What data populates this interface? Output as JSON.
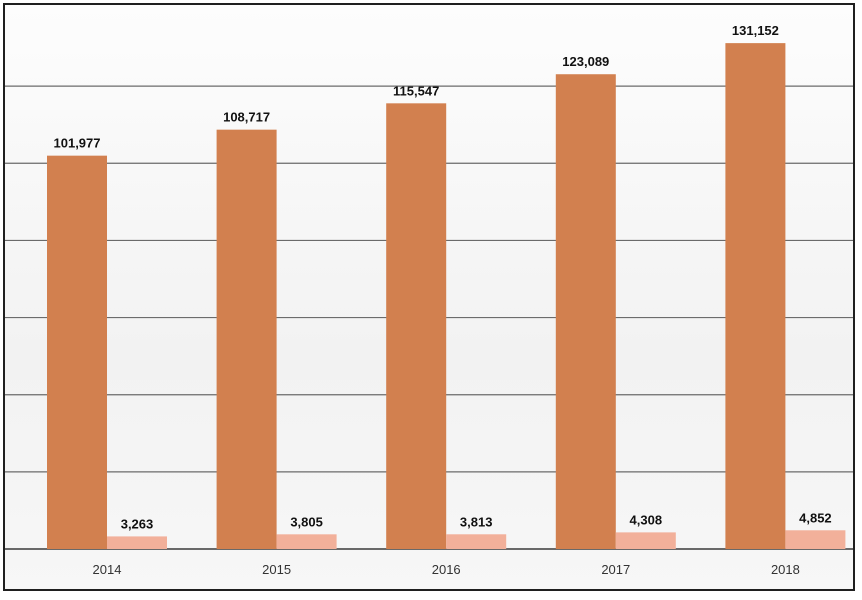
{
  "chart_data": {
    "type": "bar",
    "categories": [
      "2014",
      "2015",
      "2016",
      "2017",
      "2018"
    ],
    "series": [
      {
        "values": [
          101977,
          108717,
          115547,
          123089,
          131152
        ],
        "color": "#d2804f"
      },
      {
        "values": [
          3263,
          3805,
          3813,
          4308,
          4852
        ],
        "color": "#f2b09a"
      }
    ],
    "value_labels": [
      [
        "101,977",
        "108,717",
        "115,547",
        "123,089",
        "131,152"
      ],
      [
        "3,263",
        "3,805",
        "3,813",
        "4,308",
        "4,852"
      ]
    ],
    "ylim": [
      0,
      140000
    ],
    "grid": true,
    "legend": "none"
  }
}
